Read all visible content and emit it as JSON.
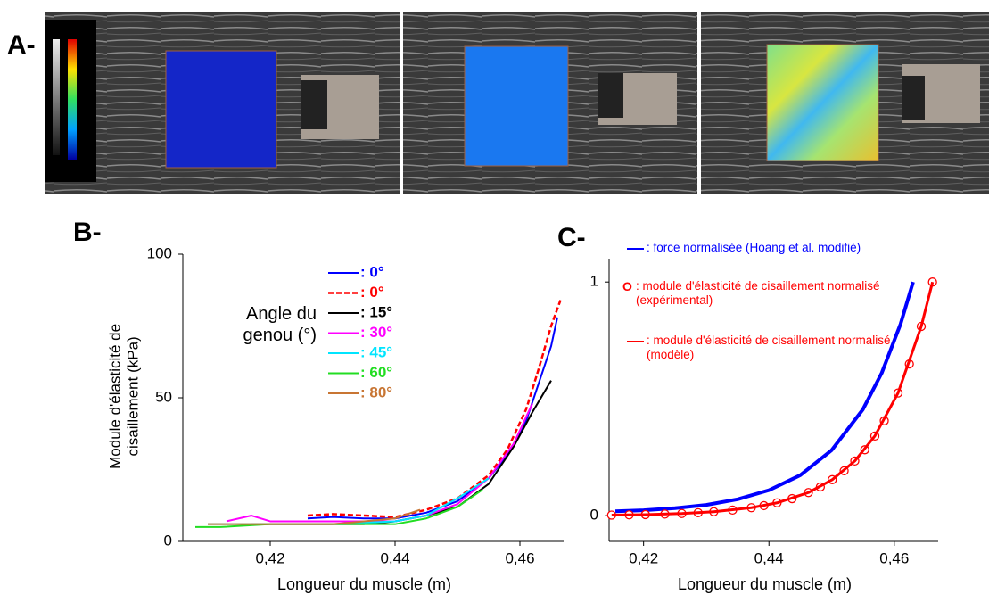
{
  "figure_a": {
    "label": "A-"
  },
  "chart_data": [
    {
      "type": "line",
      "panel_label": "B-",
      "x_label": "Longueur du muscle (m)",
      "y_label": "Module d'élasticité de cisaillement (kPa)",
      "legend_title": "Angle du genou (°)",
      "xlim": [
        0.406,
        0.467
      ],
      "ylim": [
        0,
        100
      ],
      "xticks": [
        {
          "value": 0.42,
          "label": "0,42"
        },
        {
          "value": 0.44,
          "label": "0,44"
        },
        {
          "value": 0.46,
          "label": "0,46"
        }
      ],
      "yticks": [
        0,
        50,
        100
      ],
      "series": [
        {
          "name": ": 0°",
          "color": "#0000ff",
          "dash": false,
          "width": 2,
          "x": [
            0.426,
            0.43,
            0.435,
            0.44,
            0.445,
            0.45,
            0.455,
            0.458,
            0.461,
            0.463,
            0.465,
            0.466
          ],
          "values": [
            8,
            8.5,
            8,
            8,
            10,
            14,
            22,
            30,
            42,
            55,
            68,
            78
          ]
        },
        {
          "name": ": 0°",
          "color": "#ff0000",
          "dash": true,
          "width": 2.5,
          "x": [
            0.426,
            0.43,
            0.435,
            0.44,
            0.445,
            0.45,
            0.455,
            0.458,
            0.461,
            0.463,
            0.465,
            0.4665
          ],
          "values": [
            9,
            9.5,
            9,
            8.5,
            11,
            15,
            23,
            32,
            46,
            60,
            75,
            84
          ]
        },
        {
          "name": ": 15°",
          "color": "#000000",
          "dash": false,
          "width": 2,
          "x": [
            0.417,
            0.425,
            0.435,
            0.44,
            0.445,
            0.45,
            0.455,
            0.459,
            0.462,
            0.465
          ],
          "values": [
            6,
            6,
            6,
            7,
            9,
            12,
            20,
            33,
            45,
            56
          ]
        },
        {
          "name": ": 30°",
          "color": "#ff00ff",
          "dash": false,
          "width": 2,
          "x": [
            0.413,
            0.417,
            0.42,
            0.425,
            0.43,
            0.44,
            0.445,
            0.45,
            0.455,
            0.459,
            0.462
          ],
          "values": [
            7,
            9,
            7,
            7,
            7,
            7,
            9,
            13,
            22,
            34,
            48
          ]
        },
        {
          "name": ": 45°",
          "color": "#00e5ff",
          "dash": false,
          "width": 2,
          "x": [
            0.41,
            0.42,
            0.43,
            0.44,
            0.445,
            0.45,
            0.455
          ],
          "values": [
            6,
            6,
            6,
            7,
            9,
            15,
            22
          ]
        },
        {
          "name": ": 60°",
          "color": "#22dd22",
          "dash": false,
          "width": 2,
          "x": [
            0.408,
            0.412,
            0.42,
            0.43,
            0.44,
            0.445,
            0.45,
            0.454
          ],
          "values": [
            5,
            5,
            6,
            6,
            6,
            8,
            12,
            18
          ]
        },
        {
          "name": ": 80°",
          "color": "#c87533",
          "dash": false,
          "width": 2,
          "x": [
            0.41,
            0.42,
            0.43,
            0.44,
            0.444
          ],
          "values": [
            6,
            6,
            6,
            8,
            11
          ]
        }
      ]
    },
    {
      "type": "line",
      "panel_label": "C-",
      "x_label": "Longueur du muscle (m)",
      "xlim": [
        0.4145,
        0.467
      ],
      "ylim": [
        -0.11,
        1.1
      ],
      "xticks": [
        {
          "value": 0.42,
          "label": "0,42"
        },
        {
          "value": 0.44,
          "label": "0,44"
        },
        {
          "value": 0.46,
          "label": "0,46"
        }
      ],
      "yticks": [
        0,
        1
      ],
      "series": [
        {
          "name": ": force normalisée (Hoang et al. modifié)",
          "color": "#0000ff",
          "width": 4,
          "line": true,
          "marker": "none",
          "x": [
            0.4155,
            0.42,
            0.425,
            0.43,
            0.435,
            0.44,
            0.445,
            0.45,
            0.455,
            0.458,
            0.461,
            0.463
          ],
          "values": [
            0.019,
            0.023,
            0.032,
            0.046,
            0.07,
            0.109,
            0.173,
            0.28,
            0.455,
            0.611,
            0.82,
            1
          ]
        },
        {
          "name": ": module d'élasticité de cisaillement normalisé (expérimental)",
          "legend_symbol": "O",
          "color": "#ff0000",
          "width": 1,
          "line": false,
          "marker": "circle",
          "x": [
            0.4149,
            0.4177,
            0.4203,
            0.4234,
            0.4261,
            0.4287,
            0.4312,
            0.4342,
            0.4372,
            0.4392,
            0.4413,
            0.4437,
            0.4463,
            0.4482,
            0.4501,
            0.452,
            0.4537,
            0.4553,
            0.4569,
            0.4584,
            0.4606,
            0.4624,
            0.4643,
            0.4661
          ],
          "values": [
            0.0025,
            0.0035,
            0.0047,
            0.0068,
            0.0093,
            0.0126,
            0.0169,
            0.024,
            0.034,
            0.043,
            0.055,
            0.073,
            0.099,
            0.123,
            0.154,
            0.192,
            0.234,
            0.282,
            0.341,
            0.406,
            0.525,
            0.649,
            0.81,
            1
          ]
        },
        {
          "name": ": module d'élasticité de cisaillement normalisé (modèle)",
          "color": "#ff0000",
          "width": 3,
          "line": true,
          "marker": "none",
          "x": [
            0.4149,
            0.4203,
            0.4261,
            0.4312,
            0.4372,
            0.4413,
            0.4463,
            0.4501,
            0.4537,
            0.4569,
            0.4606,
            0.4643,
            0.4661
          ],
          "values": [
            0.0025,
            0.0047,
            0.0093,
            0.0169,
            0.034,
            0.055,
            0.099,
            0.154,
            0.234,
            0.341,
            0.525,
            0.81,
            1
          ]
        }
      ]
    }
  ]
}
